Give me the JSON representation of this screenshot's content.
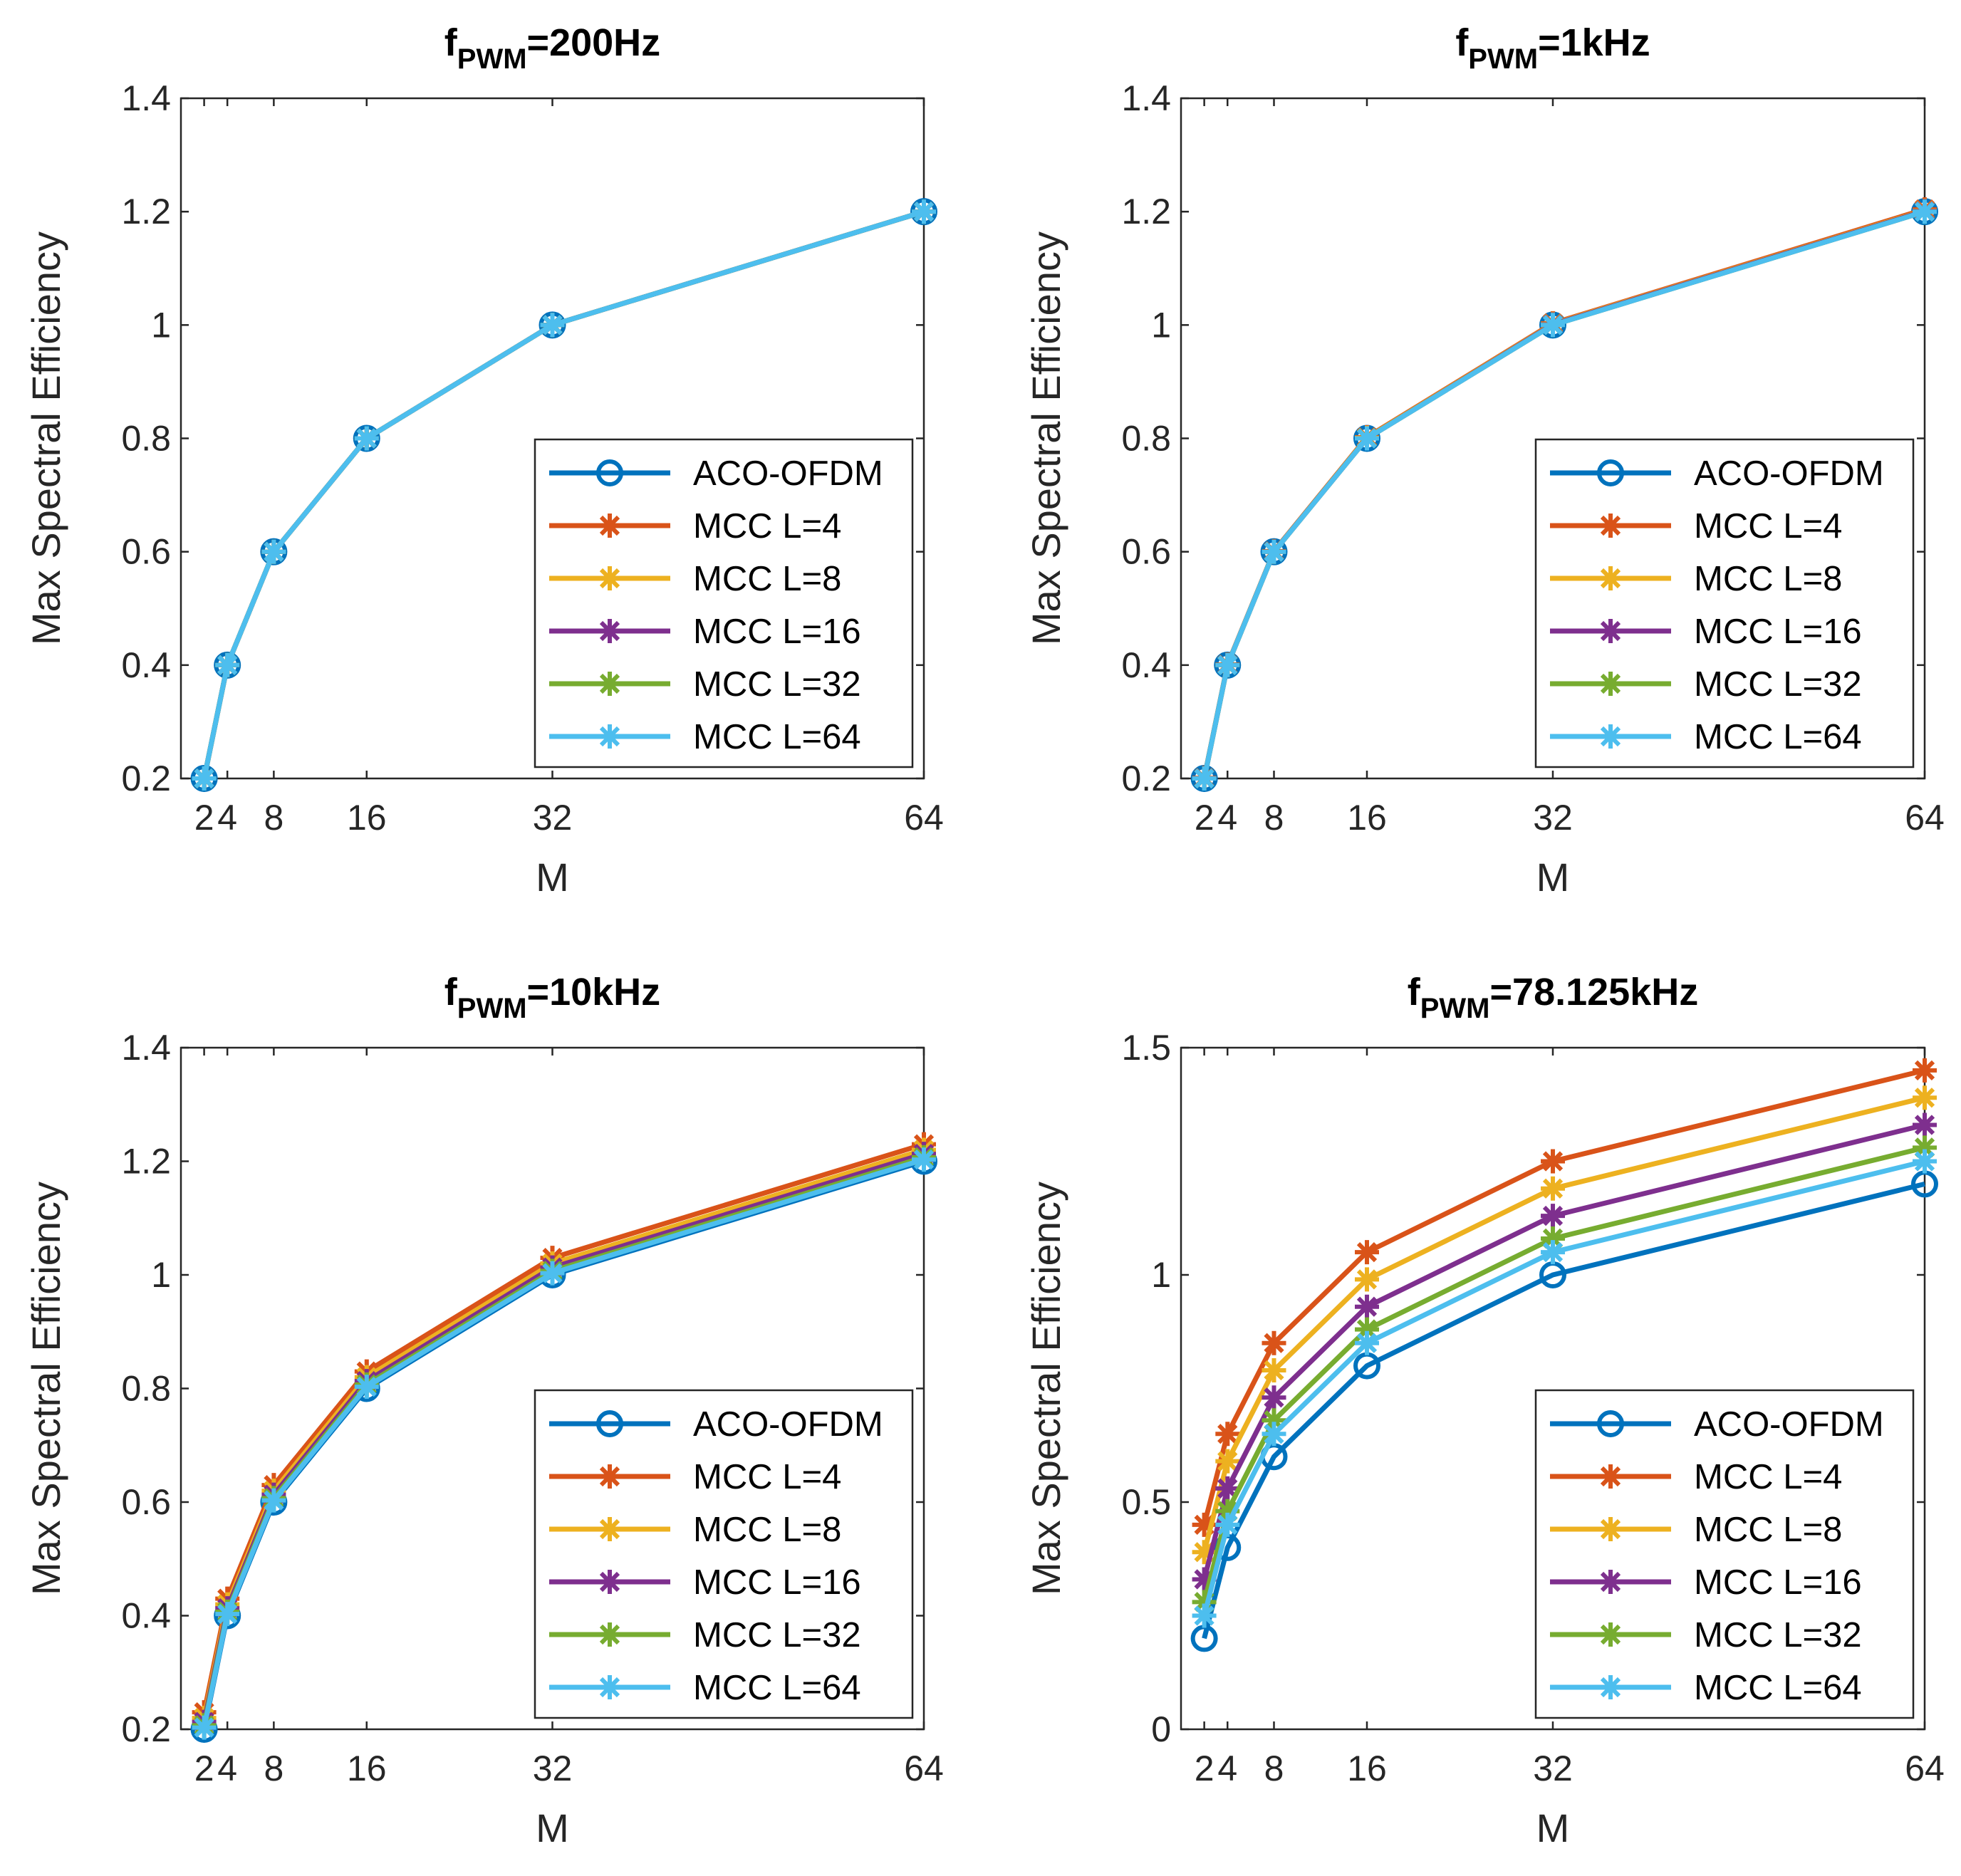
{
  "chart_data": [
    {
      "type": "line",
      "title": {
        "main": "f",
        "subscript": "PWM",
        "suffix": "=200Hz"
      },
      "xlabel": "M",
      "ylabel": "Max Spectral Efficiency",
      "xlim": [
        0,
        64
      ],
      "ylim": [
        0.2,
        1.4
      ],
      "xticks": [
        2,
        4,
        8,
        16,
        32,
        64
      ],
      "xtick_labels": [
        "2",
        "4",
        "8",
        "16",
        "32",
        "64"
      ],
      "yticks": [
        0.2,
        0.4,
        0.6,
        0.8,
        1,
        1.2,
        1.4
      ],
      "ytick_labels": [
        "0.2",
        "0.4",
        "0.6",
        "0.8",
        "1",
        "1.2",
        "1.4"
      ],
      "legend_position": "bottom-right",
      "x": [
        2,
        4,
        8,
        16,
        32,
        64
      ],
      "series": [
        {
          "name": "ACO-OFDM",
          "marker": "o",
          "color": "#0072BD",
          "values": [
            0.2,
            0.4,
            0.6,
            0.8,
            1.0,
            1.2
          ]
        },
        {
          "name": "MCC L=4",
          "marker": "*",
          "color": "#D95319",
          "values": [
            0.2,
            0.4,
            0.6,
            0.8,
            1.0,
            1.2
          ]
        },
        {
          "name": "MCC L=8",
          "marker": "*",
          "color": "#EDB120",
          "values": [
            0.2,
            0.4,
            0.6,
            0.8,
            1.0,
            1.2
          ]
        },
        {
          "name": "MCC L=16",
          "marker": "*",
          "color": "#7E2F8E",
          "values": [
            0.2,
            0.4,
            0.6,
            0.8,
            1.0,
            1.2
          ]
        },
        {
          "name": "MCC L=32",
          "marker": "*",
          "color": "#77AC30",
          "values": [
            0.2,
            0.4,
            0.6,
            0.8,
            1.0,
            1.2
          ]
        },
        {
          "name": "MCC L=64",
          "marker": "*",
          "color": "#4DBEEE",
          "values": [
            0.2,
            0.4,
            0.6,
            0.8,
            1.0,
            1.2
          ]
        }
      ]
    },
    {
      "type": "line",
      "title": {
        "main": "f",
        "subscript": "PWM",
        "suffix": "=1kHz"
      },
      "xlabel": "M",
      "ylabel": "Max Spectral Efficiency",
      "xlim": [
        0,
        64
      ],
      "ylim": [
        0.2,
        1.4
      ],
      "xticks": [
        2,
        4,
        8,
        16,
        32,
        64
      ],
      "xtick_labels": [
        "2",
        "4",
        "8",
        "16",
        "32",
        "64"
      ],
      "yticks": [
        0.2,
        0.4,
        0.6,
        0.8,
        1,
        1.2,
        1.4
      ],
      "ytick_labels": [
        "0.2",
        "0.4",
        "0.6",
        "0.8",
        "1",
        "1.2",
        "1.4"
      ],
      "legend_position": "bottom-right",
      "x": [
        2,
        4,
        8,
        16,
        32,
        64
      ],
      "series": [
        {
          "name": "ACO-OFDM",
          "marker": "o",
          "color": "#0072BD",
          "values": [
            0.2,
            0.4,
            0.6,
            0.8,
            1.0,
            1.2
          ]
        },
        {
          "name": "MCC L=4",
          "marker": "*",
          "color": "#D95319",
          "values": [
            0.201,
            0.401,
            0.601,
            0.802,
            1.003,
            1.204
          ]
        },
        {
          "name": "MCC L=8",
          "marker": "*",
          "color": "#EDB120",
          "values": [
            0.2,
            0.4,
            0.6,
            0.801,
            1.002,
            1.202
          ]
        },
        {
          "name": "MCC L=16",
          "marker": "*",
          "color": "#7E2F8E",
          "values": [
            0.2,
            0.4,
            0.6,
            0.8,
            1.001,
            1.201
          ]
        },
        {
          "name": "MCC L=32",
          "marker": "*",
          "color": "#77AC30",
          "values": [
            0.2,
            0.4,
            0.6,
            0.8,
            1.0,
            1.2
          ]
        },
        {
          "name": "MCC L=64",
          "marker": "*",
          "color": "#4DBEEE",
          "values": [
            0.2,
            0.4,
            0.6,
            0.8,
            1.0,
            1.2
          ]
        }
      ]
    },
    {
      "type": "line",
      "title": {
        "main": "f",
        "subscript": "PWM",
        "suffix": "=10kHz"
      },
      "xlabel": "M",
      "ylabel": "Max Spectral Efficiency",
      "xlim": [
        0,
        64
      ],
      "ylim": [
        0.2,
        1.4
      ],
      "xticks": [
        2,
        4,
        8,
        16,
        32,
        64
      ],
      "xtick_labels": [
        "2",
        "4",
        "8",
        "16",
        "32",
        "64"
      ],
      "yticks": [
        0.2,
        0.4,
        0.6,
        0.8,
        1,
        1.2,
        1.4
      ],
      "ytick_labels": [
        "0.2",
        "0.4",
        "0.6",
        "0.8",
        "1",
        "1.2",
        "1.4"
      ],
      "legend_position": "bottom-right",
      "x": [
        2,
        4,
        8,
        16,
        32,
        64
      ],
      "series": [
        {
          "name": "ACO-OFDM",
          "marker": "o",
          "color": "#0072BD",
          "values": [
            0.2,
            0.4,
            0.6,
            0.8,
            1.0,
            1.2
          ]
        },
        {
          "name": "MCC L=4",
          "marker": "*",
          "color": "#D95319",
          "values": [
            0.23,
            0.43,
            0.63,
            0.83,
            1.03,
            1.23
          ]
        },
        {
          "name": "MCC L=8",
          "marker": "*",
          "color": "#EDB120",
          "values": [
            0.22,
            0.42,
            0.62,
            0.82,
            1.02,
            1.22
          ]
        },
        {
          "name": "MCC L=16",
          "marker": "*",
          "color": "#7E2F8E",
          "values": [
            0.213,
            0.413,
            0.613,
            0.813,
            1.013,
            1.213
          ]
        },
        {
          "name": "MCC L=32",
          "marker": "*",
          "color": "#77AC30",
          "values": [
            0.207,
            0.407,
            0.607,
            0.807,
            1.007,
            1.207
          ]
        },
        {
          "name": "MCC L=64",
          "marker": "*",
          "color": "#4DBEEE",
          "values": [
            0.203,
            0.403,
            0.603,
            0.803,
            1.003,
            1.203
          ]
        }
      ]
    },
    {
      "type": "line",
      "title": {
        "main": "f",
        "subscript": "PWM",
        "suffix": "=78.125kHz"
      },
      "xlabel": "M",
      "ylabel": "Max Spectral Efficiency",
      "xlim": [
        0,
        64
      ],
      "ylim": [
        0,
        1.5
      ],
      "xticks": [
        2,
        4,
        8,
        16,
        32,
        64
      ],
      "xtick_labels": [
        "2",
        "4",
        "8",
        "16",
        "32",
        "64"
      ],
      "yticks": [
        0,
        0.5,
        1,
        1.5
      ],
      "ytick_labels": [
        "0",
        "0.5",
        "1",
        "1.5"
      ],
      "legend_position": "bottom-right",
      "x": [
        2,
        4,
        8,
        16,
        32,
        64
      ],
      "series": [
        {
          "name": "ACO-OFDM",
          "marker": "o",
          "color": "#0072BD",
          "values": [
            0.2,
            0.4,
            0.6,
            0.8,
            1.0,
            1.2
          ]
        },
        {
          "name": "MCC L=4",
          "marker": "*",
          "color": "#D95319",
          "values": [
            0.45,
            0.65,
            0.85,
            1.05,
            1.25,
            1.45
          ]
        },
        {
          "name": "MCC L=8",
          "marker": "*",
          "color": "#EDB120",
          "values": [
            0.39,
            0.59,
            0.79,
            0.99,
            1.19,
            1.39
          ]
        },
        {
          "name": "MCC L=16",
          "marker": "*",
          "color": "#7E2F8E",
          "values": [
            0.33,
            0.53,
            0.73,
            0.93,
            1.13,
            1.33
          ]
        },
        {
          "name": "MCC L=32",
          "marker": "*",
          "color": "#77AC30",
          "values": [
            0.28,
            0.48,
            0.68,
            0.88,
            1.08,
            1.28
          ]
        },
        {
          "name": "MCC L=64",
          "marker": "*",
          "color": "#4DBEEE",
          "values": [
            0.25,
            0.45,
            0.65,
            0.85,
            1.05,
            1.25
          ]
        }
      ]
    }
  ]
}
